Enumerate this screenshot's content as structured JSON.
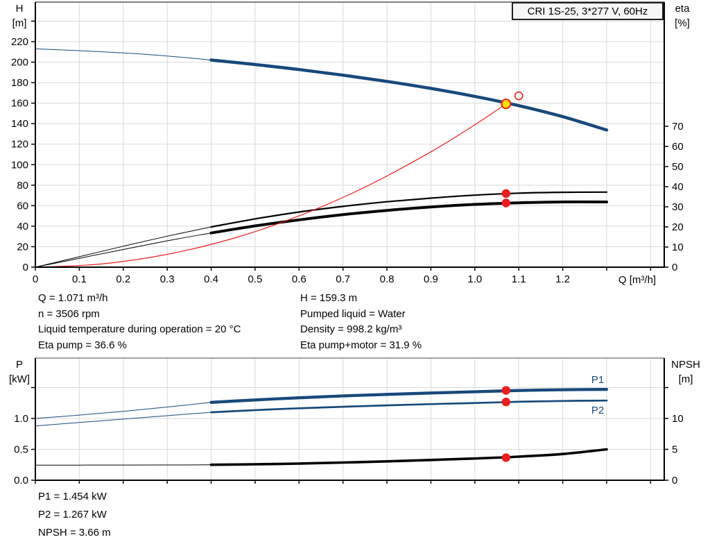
{
  "title": "CRI 1S-25, 3*277 V, 60Hz",
  "colors": {
    "curve_blue": "#17497b",
    "curve_red": "#ee1c1c",
    "curve_black": "#000000",
    "grid": "#d9d9d9",
    "axis": "#000000",
    "divider": "#a3a3a3",
    "duty_fill": "#ffe000",
    "title_bg": "#f6f6f6"
  },
  "axes": {
    "h": [
      "H",
      "[m]"
    ],
    "eta": [
      "eta",
      "[%]"
    ],
    "p": [
      "P",
      "[kW]"
    ],
    "npsh": [
      "NPSH",
      "[m]"
    ]
  },
  "series_labels": {
    "p1": "P1",
    "p2": "P2"
  },
  "annotations": {
    "top_left": [
      "Q = 1.071 m³/h",
      "n = 3506 rpm",
      "Liquid temperature during operation = 20 °C",
      "Eta pump = 36.6 %"
    ],
    "top_right": [
      "H = 159.3 m",
      "Pumped liquid = Water",
      "Density = 998.2 kg/m³",
      "Eta pump+motor = 31.9 %"
    ],
    "bottom": [
      "P1 = 1.454 kW",
      "P2 = 1.267 kW",
      "NPSH = 3.66 m"
    ]
  },
  "chart_data": [
    {
      "id": "qh-eta",
      "type": "line",
      "title": "CRI 1S-25, 3*277 V, 60Hz",
      "x_axis": {
        "label": "Q [m³/h]",
        "tick_labels": [
          "0",
          "0.1",
          "0.2",
          "0.3",
          "0.4",
          "0.5",
          "0.6",
          "0.7",
          "0.8",
          "0.9",
          "1.0",
          "1.1",
          "1.2"
        ],
        "ticks_unlabeled": [
          1.3,
          1.4
        ],
        "range": [
          0,
          1.431
        ]
      },
      "y_left": {
        "name": "H",
        "unit": "m",
        "tick_labels": [
          "0",
          "20",
          "40",
          "60",
          "80",
          "100",
          "120",
          "140",
          "160",
          "180",
          "200",
          "220"
        ],
        "ticks_unlabeled": [
          240
        ],
        "range": [
          0,
          258.6
        ]
      },
      "y_right": {
        "name": "eta",
        "unit": "%",
        "tick_labels": [
          "0",
          "10",
          "20",
          "30",
          "40",
          "50",
          "60",
          "70"
        ],
        "ticks_unlabeled": [],
        "range": [
          0,
          131.7
        ]
      },
      "x": [
        0,
        0.1,
        0.2,
        0.3,
        0.4,
        0.5,
        0.6,
        0.7,
        0.8,
        0.9,
        1.0,
        1.1,
        1.2,
        1.3
      ],
      "series": [
        {
          "name": "H-curve",
          "axis": "left",
          "color": "blue",
          "thin_until": 0.4,
          "weight": 4.5,
          "values": [
            213,
            211.2,
            209,
            206,
            202.1,
            197.7,
            192.8,
            187.3,
            181.2,
            174.4,
            166.6,
            157.6,
            146.8,
            133.8
          ]
        },
        {
          "name": "eta-pump",
          "axis": "right",
          "color": "black",
          "thin_until": 0.4,
          "weight": 2.2,
          "values": [
            0,
            5.2,
            10.4,
            15.4,
            20,
            24,
            27.4,
            30.2,
            32.5,
            34.3,
            35.8,
            36.8,
            37.2,
            37.3
          ]
        },
        {
          "name": "eta-pump-motor",
          "axis": "right",
          "color": "black",
          "thin_until": 0.4,
          "weight": 4,
          "values": [
            0,
            4.4,
            8.8,
            13.1,
            17,
            20.5,
            23.5,
            26.1,
            28.2,
            29.9,
            31.2,
            32,
            32.4,
            32.4
          ]
        },
        {
          "name": "system-curve",
          "axis": "left",
          "color": "red",
          "thin_until": null,
          "weight": 1.2,
          "x": [
            0,
            0.15,
            0.3,
            0.45,
            0.6,
            0.75,
            0.9,
            1.0,
            1.071
          ],
          "values": [
            0,
            3.1,
            12.5,
            28.1,
            50,
            78.1,
            112.5,
            138.9,
            159.3
          ]
        }
      ],
      "markers": [
        {
          "type": "rated-point",
          "axis": "left",
          "q": 1.1,
          "value": 167.2
        },
        {
          "type": "duty-point",
          "axis": "left",
          "q": 1.071,
          "value": 159.3
        },
        {
          "type": "dot",
          "axis": "right",
          "q": 1.071,
          "value": 36.6
        },
        {
          "type": "dot",
          "axis": "right",
          "q": 1.071,
          "value": 31.9
        }
      ]
    },
    {
      "id": "power-npsh",
      "type": "line",
      "title": "",
      "x_axis": {
        "label": "",
        "tick_labels": [],
        "ticks_unlabeled": [
          0,
          0.1,
          0.2,
          0.3,
          0.4,
          0.5,
          0.6,
          0.7,
          0.8,
          0.9,
          1.0,
          1.1,
          1.2,
          1.3,
          1.4
        ],
        "range": [
          0,
          1.431
        ]
      },
      "y_left": {
        "name": "P",
        "unit": "kW",
        "tick_labels": [
          "0.0",
          "0.5",
          "1.0"
        ],
        "ticks_unlabeled": [
          1.5
        ],
        "range": [
          0,
          1.977
        ]
      },
      "y_right": {
        "name": "NPSH",
        "unit": "m",
        "tick_labels": [
          "0",
          "5",
          "10"
        ],
        "ticks_unlabeled": [
          15
        ],
        "range": [
          0,
          19.77
        ]
      },
      "x": [
        0,
        0.1,
        0.2,
        0.3,
        0.4,
        0.5,
        0.6,
        0.7,
        0.8,
        0.9,
        1.0,
        1.1,
        1.2,
        1.3
      ],
      "series": [
        {
          "name": "P1",
          "axis": "left",
          "color": "blue",
          "thin_until": 0.4,
          "weight": 4.3,
          "values": [
            1.0,
            1.055,
            1.115,
            1.185,
            1.26,
            1.3,
            1.335,
            1.365,
            1.39,
            1.412,
            1.432,
            1.452,
            1.465,
            1.47
          ]
        },
        {
          "name": "P2",
          "axis": "left",
          "color": "blue",
          "thin_until": 0.4,
          "weight": 2.7,
          "values": [
            0.88,
            0.935,
            0.99,
            1.045,
            1.1,
            1.135,
            1.165,
            1.19,
            1.212,
            1.232,
            1.25,
            1.27,
            1.283,
            1.29
          ]
        },
        {
          "name": "NPSH",
          "axis": "right",
          "color": "black",
          "thin_until": 0.4,
          "weight": 3.6,
          "values": [
            2.45,
            2.45,
            2.46,
            2.47,
            2.5,
            2.58,
            2.7,
            2.86,
            3.05,
            3.28,
            3.52,
            3.82,
            4.25,
            5.0
          ]
        }
      ],
      "markers": [
        {
          "type": "dot",
          "axis": "left",
          "q": 1.071,
          "value": 1.454
        },
        {
          "type": "dot",
          "axis": "left",
          "q": 1.071,
          "value": 1.267
        },
        {
          "type": "dot",
          "axis": "right",
          "q": 1.071,
          "value": 3.66
        }
      ]
    }
  ]
}
